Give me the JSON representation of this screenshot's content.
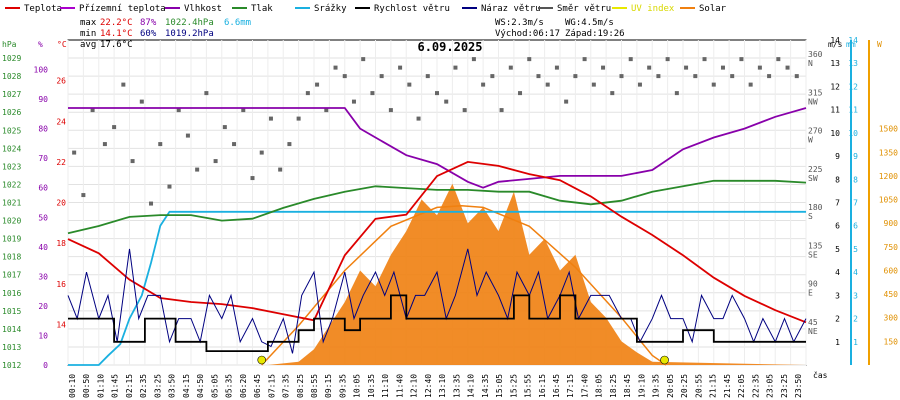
{
  "chart_data": {
    "type": "line",
    "title": "6.09.2025",
    "legend": [
      {
        "key": "temp",
        "label": "Teplota",
        "color": "#dd0000"
      },
      {
        "key": "feels",
        "label": "Přízemní teplota",
        "color": "#aa00cc"
      },
      {
        "key": "hum",
        "label": "Vlhkost",
        "color": "#8800aa"
      },
      {
        "key": "press",
        "label": "Tlak",
        "color": "#2a8a2a"
      },
      {
        "key": "rain",
        "label": "Srážky",
        "color": "#1ab0e0"
      },
      {
        "key": "wind",
        "label": "Rychlost větru",
        "color": "#000000"
      },
      {
        "key": "gust",
        "label": "Náraz větru",
        "color": "#000080"
      },
      {
        "key": "dir",
        "label": "Směr větru",
        "color": "#555555"
      },
      {
        "key": "uv",
        "label": "UV index",
        "color": "#e8e800"
      },
      {
        "key": "solar",
        "label": "Solar",
        "color": "#f08010"
      }
    ],
    "stats": {
      "max_label": "max",
      "max_temp": "22.2°C",
      "max_hum": "87%",
      "max_press": "1022.4hPa",
      "rain_total": "6.6mm",
      "min_label": "min",
      "min_temp": "14.1°C",
      "min_hum": "60%",
      "min_press": "1019.2hPa",
      "avg_label": "avg",
      "avg_temp": "17.6°C"
    },
    "wind_info": {
      "ws": "WS:2.3m/s",
      "wg": "WG:4.5m/s",
      "sunrise": "Východ:06:17",
      "sunset": "Západ:19:26"
    },
    "axes": {
      "hpa": {
        "unit": "hPa",
        "range": [
          1012,
          1030
        ],
        "ticks": [
          1012,
          1013,
          1014,
          1015,
          1016,
          1017,
          1018,
          1019,
          1020,
          1021,
          1022,
          1023,
          1024,
          1025,
          1026,
          1027,
          1028,
          1029
        ]
      },
      "pct": {
        "unit": "%",
        "range": [
          0,
          110
        ],
        "ticks": [
          0,
          10,
          20,
          30,
          40,
          50,
          60,
          70,
          80,
          90,
          100
        ]
      },
      "celsius": {
        "unit": "°C",
        "range": [
          12,
          28
        ],
        "ticks": [
          14,
          16,
          18,
          20,
          22,
          24,
          26
        ]
      },
      "direction": {
        "range": [
          0,
          382.5
        ],
        "ticks": [
          {
            "v": 45,
            "lbl": "NE"
          },
          {
            "v": 90,
            "lbl": "E"
          },
          {
            "v": 135,
            "lbl": "SE"
          },
          {
            "v": 180,
            "lbl": "S"
          },
          {
            "v": 225,
            "lbl": "SW"
          },
          {
            "v": 270,
            "lbl": "W"
          },
          {
            "v": 315,
            "lbl": "NW"
          },
          {
            "v": 360,
            "lbl": "N"
          }
        ]
      },
      "ms": {
        "unit": "m/s",
        "range": [
          0,
          14
        ],
        "ticks": [
          1,
          2,
          3,
          4,
          5,
          6,
          7,
          8,
          9,
          10,
          11,
          12,
          13,
          14
        ]
      },
      "mm": {
        "unit": "mm",
        "range": [
          0,
          14
        ],
        "ticks": [
          1,
          2,
          3,
          4,
          5,
          6,
          7,
          8,
          9,
          10,
          11,
          12,
          13,
          14
        ]
      },
      "wm2": {
        "unit": "W",
        "range": [
          0,
          2062.5
        ],
        "ticks": [
          150,
          300,
          450,
          600,
          750,
          900,
          1050,
          1200,
          1350,
          1500
        ]
      },
      "x_label": "čas",
      "x_ticks": [
        "00:10",
        "00:50",
        "01:10",
        "01:45",
        "02:15",
        "02:35",
        "03:25",
        "03:50",
        "04:15",
        "04:50",
        "05:05",
        "05:35",
        "06:20",
        "06:45",
        "07:15",
        "07:35",
        "08:25",
        "08:55",
        "09:15",
        "09:35",
        "10:05",
        "10:35",
        "11:10",
        "11:40",
        "12:10",
        "12:40",
        "13:10",
        "13:35",
        "14:10",
        "14:35",
        "15:05",
        "15:25",
        "15:55",
        "16:15",
        "16:45",
        "17:15",
        "17:40",
        "18:05",
        "18:25",
        "18:45",
        "19:10",
        "19:35",
        "20:05",
        "20:25",
        "20:55",
        "21:15",
        "21:45",
        "22:05",
        "22:35",
        "23:05",
        "23:25",
        "23:50"
      ]
    },
    "series": {
      "temp_c": {
        "t": [
          0,
          1,
          2,
          3,
          4,
          5,
          6,
          7,
          8,
          8.5,
          9,
          10,
          11,
          12,
          13,
          14,
          15,
          16,
          17,
          18,
          19,
          20,
          21,
          22,
          23,
          24
        ],
        "v": [
          18.2,
          17.5,
          16.2,
          15.3,
          15.1,
          15.0,
          14.8,
          14.5,
          14.2,
          15.8,
          17.4,
          19.2,
          19.4,
          21.3,
          22.0,
          21.8,
          21.4,
          21.1,
          20.3,
          19.3,
          18.4,
          17.4,
          16.3,
          15.4,
          14.7,
          14.1
        ]
      },
      "humidity_pct": {
        "t": [
          0,
          8,
          9,
          9.5,
          10,
          11,
          12,
          13,
          13.5,
          14,
          15,
          16,
          17,
          18,
          19,
          20,
          21,
          22,
          23,
          24
        ],
        "v": [
          87,
          87,
          87,
          80,
          77,
          71,
          68,
          62,
          60,
          62,
          63,
          64,
          64,
          64,
          66,
          73,
          77,
          80,
          84,
          87
        ]
      },
      "pressure_hpa": {
        "t": [
          0,
          1,
          2,
          3,
          4,
          5,
          6,
          7,
          8,
          9,
          10,
          11,
          12,
          13,
          14,
          15,
          16,
          17,
          18,
          19,
          20,
          21,
          22,
          23,
          24
        ],
        "v": [
          1019.3,
          1019.7,
          1020.2,
          1020.3,
          1020.3,
          1020.0,
          1020.1,
          1020.7,
          1021.2,
          1021.6,
          1021.9,
          1021.8,
          1021.7,
          1021.7,
          1021.6,
          1021.6,
          1021.1,
          1020.9,
          1021.1,
          1021.6,
          1021.9,
          1022.2,
          1022.2,
          1022.2,
          1022.1
        ]
      },
      "rain_mm": {
        "t": [
          0,
          1.0,
          1.3,
          1.7,
          2.0,
          2.4,
          2.7,
          3.0,
          3.3,
          3.6,
          24
        ],
        "v": [
          0,
          0,
          0.4,
          0.9,
          2.0,
          3.0,
          4.4,
          6.0,
          6.6,
          6.6,
          6.6
        ]
      },
      "wind_ms": {
        "t": [
          0,
          0.5,
          1,
          1.5,
          2,
          2.5,
          3,
          3.5,
          4,
          4.5,
          5,
          5.5,
          6,
          6.5,
          7,
          7.5,
          8,
          8.5,
          9,
          9.5,
          10,
          10.5,
          11,
          11.5,
          12,
          12.5,
          13,
          13.5,
          14,
          14.5,
          15,
          15.5,
          16,
          16.5,
          17,
          17.5,
          18,
          18.5,
          19,
          19.5,
          20,
          20.5,
          21,
          21.5,
          22,
          22.5,
          23,
          23.5,
          24
        ],
        "v": [
          2,
          2,
          2,
          1,
          1,
          2,
          2,
          1,
          1,
          0.6,
          0.6,
          0.6,
          0.6,
          1,
          1,
          1.5,
          2,
          2,
          1.5,
          2,
          2,
          3,
          2,
          2,
          2,
          2,
          2,
          2,
          2,
          3,
          2,
          2,
          3,
          2,
          2,
          2,
          2,
          1,
          1,
          1,
          1.5,
          1.5,
          1,
          1,
          1,
          1,
          1,
          1,
          1
        ]
      },
      "gust_ms": {
        "t": [
          0,
          0.3,
          0.6,
          1,
          1.3,
          1.6,
          2,
          2.3,
          2.6,
          3,
          3.3,
          3.6,
          4,
          4.3,
          4.6,
          5,
          5.3,
          5.6,
          6,
          6.3,
          6.6,
          7,
          7.3,
          7.6,
          8,
          8.3,
          8.6,
          9,
          9.3,
          9.6,
          10,
          10.3,
          10.6,
          11,
          11.3,
          11.6,
          12,
          12.3,
          12.6,
          13,
          13.3,
          13.6,
          14,
          14.3,
          14.6,
          15,
          15.3,
          15.6,
          16,
          16.3,
          16.6,
          17,
          17.3,
          17.6,
          18,
          18.3,
          18.6,
          19,
          19.3,
          19.6,
          20,
          20.3,
          20.6,
          21,
          21.3,
          21.6,
          22,
          22.3,
          22.6,
          23,
          23.3,
          23.6,
          24
        ],
        "v": [
          3,
          2,
          4,
          2,
          3,
          1,
          5,
          2,
          3,
          3,
          1,
          2,
          2,
          1,
          3,
          2,
          3,
          1,
          2,
          1,
          0.8,
          2,
          0.5,
          3,
          4,
          1,
          2,
          4,
          2,
          3,
          4,
          3,
          4,
          2,
          3,
          3,
          4,
          2,
          3,
          5,
          3,
          4,
          3,
          2,
          4,
          3,
          4,
          2,
          3,
          4,
          2,
          3,
          3,
          3,
          2,
          2,
          1,
          2,
          3,
          2,
          2,
          1,
          3,
          2,
          2,
          3,
          2,
          1,
          2,
          1,
          2,
          1,
          2
        ]
      },
      "direction_deg": {
        "t": [
          0.2,
          0.5,
          0.8,
          1.2,
          1.5,
          1.8,
          2.1,
          2.4,
          2.7,
          3.0,
          3.3,
          3.6,
          3.9,
          4.2,
          4.5,
          4.8,
          5.1,
          5.4,
          5.7,
          6.0,
          6.3,
          6.6,
          6.9,
          7.2,
          7.5,
          7.8,
          8.1,
          8.4,
          8.7,
          9.0,
          9.3,
          9.6,
          9.9,
          10.2,
          10.5,
          10.8,
          11.1,
          11.4,
          11.7,
          12.0,
          12.3,
          12.6,
          12.9,
          13.2,
          13.5,
          13.8,
          14.1,
          14.4,
          14.7,
          15.0,
          15.3,
          15.6,
          15.9,
          16.2,
          16.5,
          16.8,
          17.1,
          17.4,
          17.7,
          18.0,
          18.3,
          18.6,
          18.9,
          19.2,
          19.5,
          19.8,
          20.1,
          20.4,
          20.7,
          21.0,
          21.3,
          21.6,
          21.9,
          22.2,
          22.5,
          22.8,
          23.1,
          23.4,
          23.7
        ],
        "v": [
          250,
          200,
          300,
          260,
          280,
          330,
          240,
          310,
          190,
          260,
          210,
          300,
          270,
          230,
          320,
          240,
          280,
          260,
          300,
          220,
          250,
          290,
          230,
          260,
          290,
          320,
          330,
          300,
          350,
          340,
          310,
          360,
          320,
          340,
          300,
          350,
          330,
          290,
          340,
          320,
          310,
          350,
          300,
          360,
          330,
          340,
          300,
          350,
          320,
          360,
          340,
          330,
          350,
          310,
          340,
          360,
          330,
          350,
          320,
          340,
          360,
          330,
          350,
          340,
          360,
          320,
          350,
          340,
          360,
          330,
          350,
          340,
          360,
          330,
          350,
          340,
          360,
          350,
          340
        ]
      },
      "solar_wm2": {
        "t": [
          0,
          6.5,
          7.5,
          8.0,
          8.5,
          9.0,
          9.5,
          10.0,
          10.5,
          11.0,
          11.5,
          12.0,
          12.5,
          13.0,
          13.5,
          14.0,
          14.5,
          15.0,
          15.5,
          16.0,
          16.5,
          17.0,
          17.5,
          18.0,
          18.5,
          19.0,
          24
        ],
        "v": [
          0,
          0,
          20,
          100,
          250,
          400,
          600,
          500,
          700,
          850,
          1050,
          950,
          1150,
          900,
          1000,
          850,
          1100,
          700,
          800,
          600,
          700,
          400,
          300,
          150,
          80,
          20,
          0
        ]
      },
      "solar_max_wm2": {
        "t": [
          6.3,
          7.5,
          9,
          10.5,
          12,
          12.8,
          13.5,
          15,
          16.5,
          18,
          19,
          19.45
        ],
        "v": [
          0,
          250,
          600,
          880,
          1000,
          1010,
          1000,
          880,
          620,
          300,
          60,
          0
        ]
      },
      "uv_markers": [
        {
          "t": 6.3,
          "v": 0
        },
        {
          "t": 19.4,
          "v": 0
        }
      ]
    }
  }
}
